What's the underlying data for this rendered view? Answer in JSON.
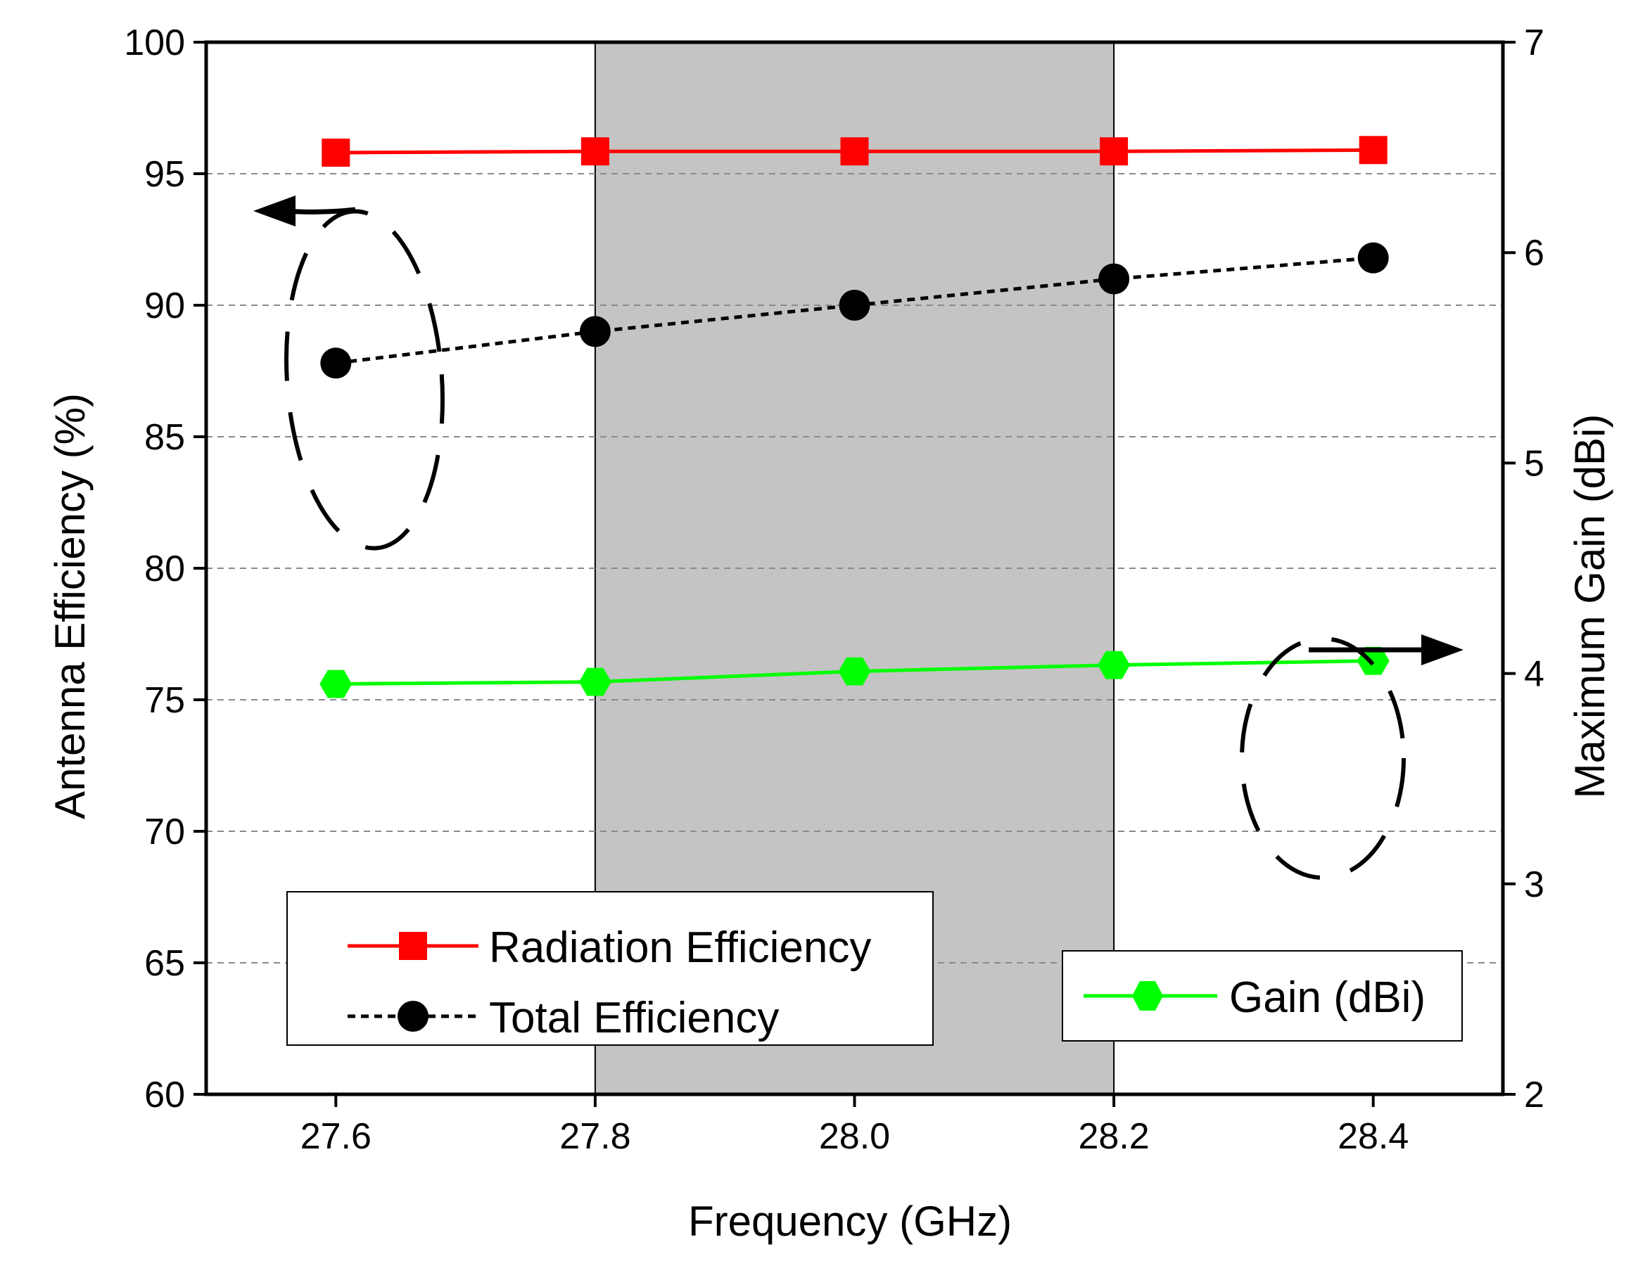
{
  "chart_data": {
    "type": "line",
    "title": "",
    "xlabel": "Frequency (GHz)",
    "ylabel_left": "Antenna Efficiency (%)",
    "ylabel_right": "Maximum Gain (dBi)",
    "xlim": [
      27.5,
      28.5
    ],
    "ylim_left": [
      60,
      100
    ],
    "ylim_right": [
      2,
      7
    ],
    "x_ticks": [
      "27.6",
      "27.8",
      "28.0",
      "28.2",
      "28.4"
    ],
    "x_tick_values": [
      27.6,
      27.8,
      28.0,
      28.2,
      28.4
    ],
    "y_left_ticks": [
      "60",
      "65",
      "70",
      "75",
      "80",
      "85",
      "90",
      "95",
      "100"
    ],
    "y_left_tick_values": [
      60,
      65,
      70,
      75,
      80,
      85,
      90,
      95,
      100
    ],
    "y_right_ticks": [
      "2",
      "3",
      "4",
      "5",
      "6",
      "7"
    ],
    "y_right_tick_values": [
      2,
      3,
      4,
      5,
      6,
      7
    ],
    "grid": "horizontal dashed",
    "shaded_band": {
      "x_start": 27.8,
      "x_end": 28.2,
      "color": "#c4c4c4"
    },
    "x": [
      27.6,
      27.8,
      28.0,
      28.2,
      28.4
    ],
    "series": [
      {
        "name": "Radiation Efficiency",
        "axis": "left",
        "values": [
          95.8,
          95.85,
          95.85,
          95.85,
          95.9
        ],
        "color": "#ff0000",
        "marker": "square",
        "line": "solid"
      },
      {
        "name": "Total Efficiency",
        "axis": "left",
        "values": [
          87.8,
          89.0,
          90.0,
          91.0,
          91.8
        ],
        "color": "#000000",
        "marker": "circle",
        "line": "dotted"
      },
      {
        "name": "Gain (dBi)",
        "axis": "right",
        "values": [
          3.95,
          3.96,
          4.01,
          4.04,
          4.06
        ],
        "color": "#00ff00",
        "marker": "hexagon",
        "line": "solid"
      }
    ],
    "legends": [
      {
        "entries": [
          "Radiation Efficiency",
          "Total Efficiency"
        ],
        "placement": "bottom-left"
      },
      {
        "entries": [
          "Gain (dBi)"
        ],
        "placement": "bottom-right"
      }
    ]
  }
}
